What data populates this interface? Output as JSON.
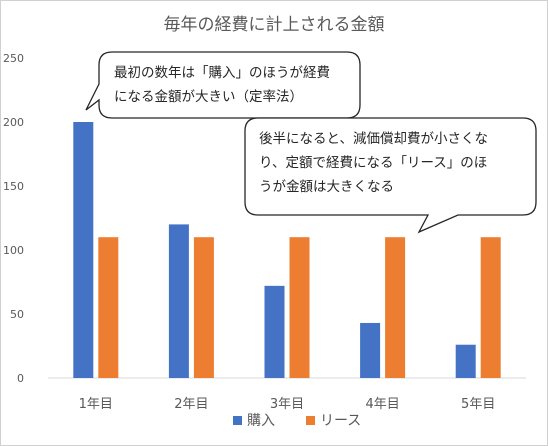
{
  "chart_data": {
    "type": "bar",
    "title": "毎年の経費に計上される金額",
    "categories": [
      "1年目",
      "2年目",
      "3年目",
      "4年目",
      "5年目"
    ],
    "series": [
      {
        "name": "購入",
        "values": [
          200,
          120,
          72,
          43,
          26
        ]
      },
      {
        "name": "リース",
        "values": [
          110,
          110,
          110,
          110,
          110
        ]
      }
    ],
    "ylim": [
      0,
      250
    ],
    "yticks": [
      "0",
      "50",
      "100",
      "150",
      "200",
      "250"
    ],
    "grid": false,
    "legend_position": "bottom",
    "colors": {
      "購入": "#4472C4",
      "リース": "#ED7D31"
    },
    "annotations": [
      "最初の数年は「購入」のほうが経費\nになる金額が大きい（定率法）",
      "後半になると、減価償却費が小さくな\nり、定額で経費になる「リース」のほ\nうが金額は大きくなる"
    ]
  }
}
